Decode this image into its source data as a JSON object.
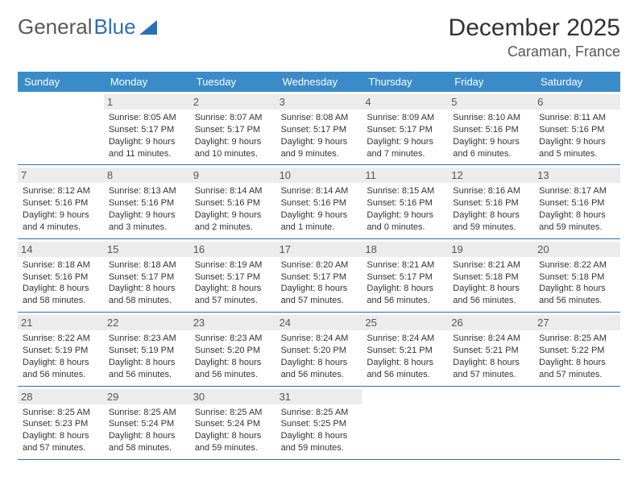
{
  "logo": {
    "text1": "General",
    "text2": "Blue"
  },
  "header": {
    "month": "December 2025",
    "location": "Caraman, France"
  },
  "daynames": [
    "Sunday",
    "Monday",
    "Tuesday",
    "Wednesday",
    "Thursday",
    "Friday",
    "Saturday"
  ],
  "colors": {
    "header_bg": "#3b8bc9",
    "header_text": "#ffffff",
    "border": "#2d6fb4",
    "daynum_bg": "#ececec",
    "text": "#333333"
  },
  "fonts": {
    "month_size": 30,
    "location_size": 18,
    "dayname_size": 13,
    "daynum_size": 13,
    "info_size": 11
  },
  "layout": {
    "cols": 7,
    "rows": 5,
    "start_offset": 1
  },
  "days": [
    {
      "n": "1",
      "sunrise": "Sunrise: 8:05 AM",
      "sunset": "Sunset: 5:17 PM",
      "daylight1": "Daylight: 9 hours",
      "daylight2": "and 11 minutes."
    },
    {
      "n": "2",
      "sunrise": "Sunrise: 8:07 AM",
      "sunset": "Sunset: 5:17 PM",
      "daylight1": "Daylight: 9 hours",
      "daylight2": "and 10 minutes."
    },
    {
      "n": "3",
      "sunrise": "Sunrise: 8:08 AM",
      "sunset": "Sunset: 5:17 PM",
      "daylight1": "Daylight: 9 hours",
      "daylight2": "and 9 minutes."
    },
    {
      "n": "4",
      "sunrise": "Sunrise: 8:09 AM",
      "sunset": "Sunset: 5:17 PM",
      "daylight1": "Daylight: 9 hours",
      "daylight2": "and 7 minutes."
    },
    {
      "n": "5",
      "sunrise": "Sunrise: 8:10 AM",
      "sunset": "Sunset: 5:16 PM",
      "daylight1": "Daylight: 9 hours",
      "daylight2": "and 6 minutes."
    },
    {
      "n": "6",
      "sunrise": "Sunrise: 8:11 AM",
      "sunset": "Sunset: 5:16 PM",
      "daylight1": "Daylight: 9 hours",
      "daylight2": "and 5 minutes."
    },
    {
      "n": "7",
      "sunrise": "Sunrise: 8:12 AM",
      "sunset": "Sunset: 5:16 PM",
      "daylight1": "Daylight: 9 hours",
      "daylight2": "and 4 minutes."
    },
    {
      "n": "8",
      "sunrise": "Sunrise: 8:13 AM",
      "sunset": "Sunset: 5:16 PM",
      "daylight1": "Daylight: 9 hours",
      "daylight2": "and 3 minutes."
    },
    {
      "n": "9",
      "sunrise": "Sunrise: 8:14 AM",
      "sunset": "Sunset: 5:16 PM",
      "daylight1": "Daylight: 9 hours",
      "daylight2": "and 2 minutes."
    },
    {
      "n": "10",
      "sunrise": "Sunrise: 8:14 AM",
      "sunset": "Sunset: 5:16 PM",
      "daylight1": "Daylight: 9 hours",
      "daylight2": "and 1 minute."
    },
    {
      "n": "11",
      "sunrise": "Sunrise: 8:15 AM",
      "sunset": "Sunset: 5:16 PM",
      "daylight1": "Daylight: 9 hours",
      "daylight2": "and 0 minutes."
    },
    {
      "n": "12",
      "sunrise": "Sunrise: 8:16 AM",
      "sunset": "Sunset: 5:16 PM",
      "daylight1": "Daylight: 8 hours",
      "daylight2": "and 59 minutes."
    },
    {
      "n": "13",
      "sunrise": "Sunrise: 8:17 AM",
      "sunset": "Sunset: 5:16 PM",
      "daylight1": "Daylight: 8 hours",
      "daylight2": "and 59 minutes."
    },
    {
      "n": "14",
      "sunrise": "Sunrise: 8:18 AM",
      "sunset": "Sunset: 5:16 PM",
      "daylight1": "Daylight: 8 hours",
      "daylight2": "and 58 minutes."
    },
    {
      "n": "15",
      "sunrise": "Sunrise: 8:18 AM",
      "sunset": "Sunset: 5:17 PM",
      "daylight1": "Daylight: 8 hours",
      "daylight2": "and 58 minutes."
    },
    {
      "n": "16",
      "sunrise": "Sunrise: 8:19 AM",
      "sunset": "Sunset: 5:17 PM",
      "daylight1": "Daylight: 8 hours",
      "daylight2": "and 57 minutes."
    },
    {
      "n": "17",
      "sunrise": "Sunrise: 8:20 AM",
      "sunset": "Sunset: 5:17 PM",
      "daylight1": "Daylight: 8 hours",
      "daylight2": "and 57 minutes."
    },
    {
      "n": "18",
      "sunrise": "Sunrise: 8:21 AM",
      "sunset": "Sunset: 5:17 PM",
      "daylight1": "Daylight: 8 hours",
      "daylight2": "and 56 minutes."
    },
    {
      "n": "19",
      "sunrise": "Sunrise: 8:21 AM",
      "sunset": "Sunset: 5:18 PM",
      "daylight1": "Daylight: 8 hours",
      "daylight2": "and 56 minutes."
    },
    {
      "n": "20",
      "sunrise": "Sunrise: 8:22 AM",
      "sunset": "Sunset: 5:18 PM",
      "daylight1": "Daylight: 8 hours",
      "daylight2": "and 56 minutes."
    },
    {
      "n": "21",
      "sunrise": "Sunrise: 8:22 AM",
      "sunset": "Sunset: 5:19 PM",
      "daylight1": "Daylight: 8 hours",
      "daylight2": "and 56 minutes."
    },
    {
      "n": "22",
      "sunrise": "Sunrise: 8:23 AM",
      "sunset": "Sunset: 5:19 PM",
      "daylight1": "Daylight: 8 hours",
      "daylight2": "and 56 minutes."
    },
    {
      "n": "23",
      "sunrise": "Sunrise: 8:23 AM",
      "sunset": "Sunset: 5:20 PM",
      "daylight1": "Daylight: 8 hours",
      "daylight2": "and 56 minutes."
    },
    {
      "n": "24",
      "sunrise": "Sunrise: 8:24 AM",
      "sunset": "Sunset: 5:20 PM",
      "daylight1": "Daylight: 8 hours",
      "daylight2": "and 56 minutes."
    },
    {
      "n": "25",
      "sunrise": "Sunrise: 8:24 AM",
      "sunset": "Sunset: 5:21 PM",
      "daylight1": "Daylight: 8 hours",
      "daylight2": "and 56 minutes."
    },
    {
      "n": "26",
      "sunrise": "Sunrise: 8:24 AM",
      "sunset": "Sunset: 5:21 PM",
      "daylight1": "Daylight: 8 hours",
      "daylight2": "and 57 minutes."
    },
    {
      "n": "27",
      "sunrise": "Sunrise: 8:25 AM",
      "sunset": "Sunset: 5:22 PM",
      "daylight1": "Daylight: 8 hours",
      "daylight2": "and 57 minutes."
    },
    {
      "n": "28",
      "sunrise": "Sunrise: 8:25 AM",
      "sunset": "Sunset: 5:23 PM",
      "daylight1": "Daylight: 8 hours",
      "daylight2": "and 57 minutes."
    },
    {
      "n": "29",
      "sunrise": "Sunrise: 8:25 AM",
      "sunset": "Sunset: 5:24 PM",
      "daylight1": "Daylight: 8 hours",
      "daylight2": "and 58 minutes."
    },
    {
      "n": "30",
      "sunrise": "Sunrise: 8:25 AM",
      "sunset": "Sunset: 5:24 PM",
      "daylight1": "Daylight: 8 hours",
      "daylight2": "and 59 minutes."
    },
    {
      "n": "31",
      "sunrise": "Sunrise: 8:25 AM",
      "sunset": "Sunset: 5:25 PM",
      "daylight1": "Daylight: 8 hours",
      "daylight2": "and 59 minutes."
    }
  ]
}
